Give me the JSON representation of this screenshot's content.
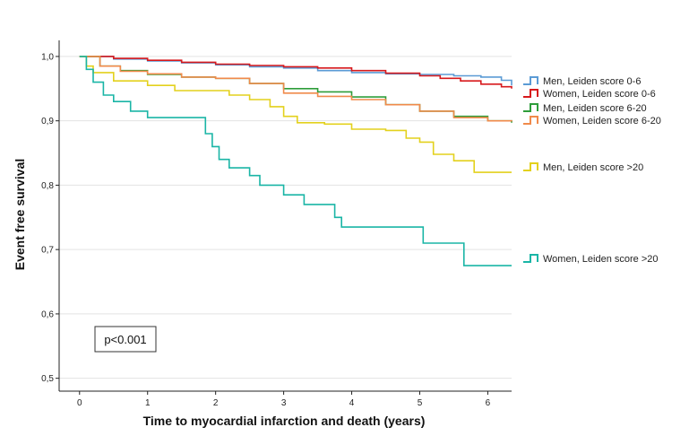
{
  "chart_data": {
    "type": "line",
    "title": "",
    "xlabel": "Time to myocardial infarction and death (years)",
    "ylabel": "Event free survival",
    "xlim": [
      -0.3,
      6.35
    ],
    "ylim": [
      0.48,
      1.025
    ],
    "x_ticks": [
      0,
      1,
      2,
      3,
      4,
      5,
      6
    ],
    "y_ticks": [
      0.5,
      0.6,
      0.7,
      0.8,
      0.9,
      1.0
    ],
    "x_tick_labels": [
      "0",
      "1",
      "2",
      "3",
      "4",
      "5",
      "6"
    ],
    "y_tick_labels": [
      "0,5",
      "0,6",
      "0,7",
      "0,8",
      "0,9",
      "1,0"
    ],
    "grid": "horizontal",
    "annotation": "p<0.001",
    "series": [
      {
        "name": "Men, Leiden score 0-6",
        "color": "#5b9bd5",
        "x": [
          0,
          0.5,
          1.0,
          1.5,
          2.0,
          2.5,
          3.0,
          3.5,
          4.0,
          4.5,
          5.0,
          5.5,
          5.9,
          6.2,
          6.35
        ],
        "y": [
          1.0,
          0.996,
          0.993,
          0.99,
          0.987,
          0.984,
          0.982,
          0.978,
          0.975,
          0.973,
          0.972,
          0.97,
          0.968,
          0.963,
          0.955
        ]
      },
      {
        "name": "Women, Leiden score 0-6",
        "color": "#d7191c",
        "x": [
          0,
          0.5,
          1.0,
          1.5,
          2.0,
          2.5,
          3.0,
          3.5,
          4.0,
          4.5,
          5.0,
          5.3,
          5.6,
          5.9,
          6.2,
          6.35
        ],
        "y": [
          1.0,
          0.997,
          0.994,
          0.991,
          0.988,
          0.986,
          0.984,
          0.982,
          0.978,
          0.974,
          0.97,
          0.966,
          0.962,
          0.957,
          0.953,
          0.95
        ]
      },
      {
        "name": "Men, Leiden score 6-20",
        "color": "#2e9d3a",
        "x": [
          0,
          0.3,
          0.6,
          1.0,
          1.5,
          2.0,
          2.5,
          3.0,
          3.5,
          4.0,
          4.5,
          5.0,
          5.5,
          6.0,
          6.35
        ],
        "y": [
          1.0,
          0.985,
          0.978,
          0.972,
          0.968,
          0.966,
          0.958,
          0.95,
          0.945,
          0.937,
          0.925,
          0.915,
          0.907,
          0.9,
          0.897
        ]
      },
      {
        "name": "Women, Leiden score 6-20",
        "color": "#f08a4b",
        "x": [
          0,
          0.3,
          0.6,
          1.0,
          1.5,
          2.0,
          2.5,
          3.0,
          3.5,
          4.0,
          4.5,
          5.0,
          5.5,
          6.0,
          6.35
        ],
        "y": [
          1.0,
          0.985,
          0.977,
          0.973,
          0.968,
          0.966,
          0.958,
          0.943,
          0.938,
          0.933,
          0.925,
          0.915,
          0.905,
          0.9,
          0.899
        ]
      },
      {
        "name": "Men, Leiden score >20",
        "color": "#e3d11d",
        "x": [
          0,
          0.1,
          0.2,
          0.5,
          1.0,
          1.4,
          1.8,
          2.2,
          2.5,
          2.8,
          3.0,
          3.2,
          3.6,
          4.0,
          4.5,
          4.8,
          5.0,
          5.2,
          5.5,
          5.8,
          6.35
        ],
        "y": [
          1.0,
          0.985,
          0.975,
          0.962,
          0.955,
          0.947,
          0.947,
          0.94,
          0.933,
          0.922,
          0.907,
          0.897,
          0.895,
          0.887,
          0.885,
          0.873,
          0.867,
          0.848,
          0.838,
          0.82,
          0.82
        ]
      },
      {
        "name": "Women, Leiden score >20",
        "color": "#1ab5a6",
        "x": [
          0,
          0.1,
          0.2,
          0.35,
          0.5,
          0.75,
          1.0,
          1.7,
          1.85,
          1.95,
          2.05,
          2.2,
          2.5,
          2.65,
          3.0,
          3.3,
          3.75,
          3.85,
          5.05,
          5.65,
          6.35
        ],
        "y": [
          1.0,
          0.98,
          0.96,
          0.94,
          0.93,
          0.915,
          0.905,
          0.905,
          0.88,
          0.86,
          0.84,
          0.827,
          0.815,
          0.8,
          0.785,
          0.77,
          0.75,
          0.735,
          0.71,
          0.675,
          0.675
        ]
      }
    ]
  }
}
